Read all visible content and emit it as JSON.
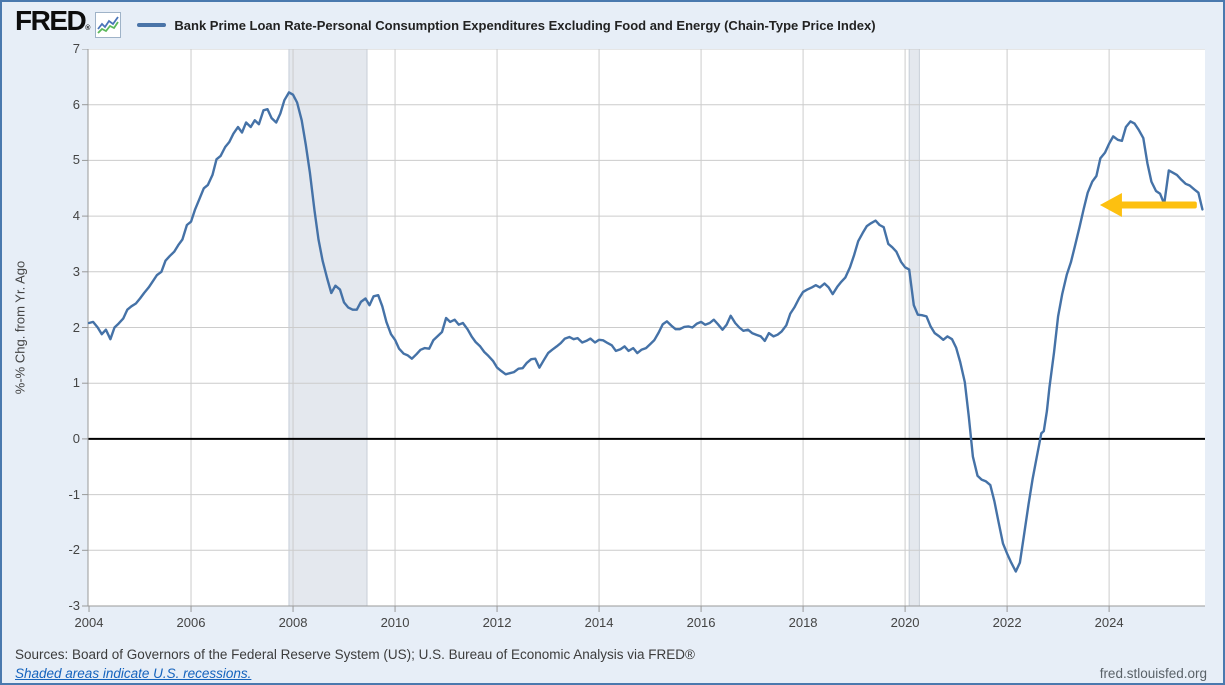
{
  "header": {
    "logo_text": "FRED",
    "logo_mark": "®",
    "legend_label": "Bank Prime Loan Rate-Personal Consumption Expenditures Excluding Food and Energy (Chain-Type Price Index)"
  },
  "footer": {
    "sources": "Sources: Board of Governors of the Federal Reserve System (US); U.S. Bureau of Economic Analysis via FRED®",
    "recession_note": "Shaded areas indicate U.S. recessions.",
    "site": "fred.stlouisfed.org"
  },
  "colors": {
    "line": "#4572a7",
    "arrow": "#fdc010",
    "gridline": "#cccccc",
    "axis": "#999999",
    "zero_line": "#000000",
    "recession_band": "#e4e8ee",
    "recession_band_edge": "#c7ced7",
    "background": "#e7eef7",
    "border": "#4a79ae"
  },
  "chart_data": {
    "type": "line",
    "title": "Bank Prime Loan Rate-Personal Consumption Expenditures Excluding Food and Energy (Chain-Type Price Index)",
    "xlabel": "",
    "ylabel": "%-% Chg. from Yr. Ago",
    "xlim": [
      2003.98,
      2025.88
    ],
    "ylim": [
      -3,
      7
    ],
    "x_ticks": [
      2004,
      2006,
      2008,
      2010,
      2012,
      2014,
      2016,
      2018,
      2020,
      2022,
      2024
    ],
    "y_ticks": [
      7,
      6,
      5,
      4,
      3,
      2,
      1,
      0,
      -1,
      -2,
      -3
    ],
    "grid": true,
    "zero_line": true,
    "legend_position": "top",
    "recession_bands": [
      [
        2007.92,
        2009.45
      ],
      [
        2020.08,
        2020.28
      ]
    ],
    "annotation_arrow": {
      "y_value": 4.2,
      "x_tail": 2025.72,
      "x_tip": 2023.82,
      "direction": "left"
    },
    "series": [
      {
        "name": "Bank Prime Loan Rate-Personal Consumption Expenditures Excluding Food and Energy (Chain-Type Price Index)",
        "points": [
          [
            2004.0,
            2.08
          ],
          [
            2004.08,
            2.1
          ],
          [
            2004.17,
            2.0
          ],
          [
            2004.25,
            1.88
          ],
          [
            2004.33,
            1.96
          ],
          [
            2004.42,
            1.79
          ],
          [
            2004.5,
            2.0
          ],
          [
            2004.58,
            2.07
          ],
          [
            2004.67,
            2.16
          ],
          [
            2004.75,
            2.32
          ],
          [
            2004.83,
            2.38
          ],
          [
            2004.92,
            2.43
          ],
          [
            2005.0,
            2.52
          ],
          [
            2005.08,
            2.62
          ],
          [
            2005.17,
            2.72
          ],
          [
            2005.25,
            2.83
          ],
          [
            2005.33,
            2.94
          ],
          [
            2005.42,
            3.0
          ],
          [
            2005.5,
            3.2
          ],
          [
            2005.58,
            3.28
          ],
          [
            2005.67,
            3.36
          ],
          [
            2005.75,
            3.48
          ],
          [
            2005.83,
            3.58
          ],
          [
            2005.92,
            3.84
          ],
          [
            2006.0,
            3.9
          ],
          [
            2006.08,
            4.12
          ],
          [
            2006.17,
            4.32
          ],
          [
            2006.25,
            4.5
          ],
          [
            2006.33,
            4.56
          ],
          [
            2006.42,
            4.74
          ],
          [
            2006.5,
            5.02
          ],
          [
            2006.58,
            5.08
          ],
          [
            2006.67,
            5.24
          ],
          [
            2006.75,
            5.33
          ],
          [
            2006.83,
            5.48
          ],
          [
            2006.92,
            5.6
          ],
          [
            2007.0,
            5.5
          ],
          [
            2007.08,
            5.68
          ],
          [
            2007.17,
            5.6
          ],
          [
            2007.25,
            5.72
          ],
          [
            2007.33,
            5.65
          ],
          [
            2007.42,
            5.9
          ],
          [
            2007.5,
            5.92
          ],
          [
            2007.58,
            5.76
          ],
          [
            2007.67,
            5.68
          ],
          [
            2007.75,
            5.84
          ],
          [
            2007.83,
            6.08
          ],
          [
            2007.92,
            6.22
          ],
          [
            2008.0,
            6.18
          ],
          [
            2008.08,
            6.04
          ],
          [
            2008.17,
            5.72
          ],
          [
            2008.25,
            5.28
          ],
          [
            2008.33,
            4.78
          ],
          [
            2008.42,
            4.1
          ],
          [
            2008.5,
            3.58
          ],
          [
            2008.58,
            3.2
          ],
          [
            2008.67,
            2.88
          ],
          [
            2008.75,
            2.62
          ],
          [
            2008.83,
            2.75
          ],
          [
            2008.92,
            2.68
          ],
          [
            2009.0,
            2.45
          ],
          [
            2009.08,
            2.36
          ],
          [
            2009.17,
            2.32
          ],
          [
            2009.25,
            2.32
          ],
          [
            2009.33,
            2.46
          ],
          [
            2009.42,
            2.52
          ],
          [
            2009.5,
            2.4
          ],
          [
            2009.58,
            2.56
          ],
          [
            2009.67,
            2.58
          ],
          [
            2009.75,
            2.38
          ],
          [
            2009.83,
            2.1
          ],
          [
            2009.92,
            1.88
          ],
          [
            2010.0,
            1.78
          ],
          [
            2010.08,
            1.62
          ],
          [
            2010.17,
            1.53
          ],
          [
            2010.25,
            1.5
          ],
          [
            2010.33,
            1.44
          ],
          [
            2010.42,
            1.52
          ],
          [
            2010.5,
            1.6
          ],
          [
            2010.58,
            1.63
          ],
          [
            2010.67,
            1.62
          ],
          [
            2010.75,
            1.77
          ],
          [
            2010.83,
            1.84
          ],
          [
            2010.92,
            1.92
          ],
          [
            2011.0,
            2.17
          ],
          [
            2011.08,
            2.1
          ],
          [
            2011.17,
            2.14
          ],
          [
            2011.25,
            2.05
          ],
          [
            2011.33,
            2.08
          ],
          [
            2011.42,
            1.97
          ],
          [
            2011.5,
            1.84
          ],
          [
            2011.58,
            1.74
          ],
          [
            2011.67,
            1.66
          ],
          [
            2011.75,
            1.56
          ],
          [
            2011.83,
            1.49
          ],
          [
            2011.92,
            1.4
          ],
          [
            2012.0,
            1.28
          ],
          [
            2012.08,
            1.22
          ],
          [
            2012.17,
            1.16
          ],
          [
            2012.25,
            1.18
          ],
          [
            2012.33,
            1.2
          ],
          [
            2012.42,
            1.26
          ],
          [
            2012.5,
            1.27
          ],
          [
            2012.58,
            1.36
          ],
          [
            2012.67,
            1.43
          ],
          [
            2012.75,
            1.44
          ],
          [
            2012.83,
            1.28
          ],
          [
            2012.92,
            1.42
          ],
          [
            2013.0,
            1.54
          ],
          [
            2013.08,
            1.6
          ],
          [
            2013.17,
            1.66
          ],
          [
            2013.25,
            1.72
          ],
          [
            2013.33,
            1.8
          ],
          [
            2013.42,
            1.83
          ],
          [
            2013.5,
            1.79
          ],
          [
            2013.58,
            1.81
          ],
          [
            2013.67,
            1.73
          ],
          [
            2013.75,
            1.76
          ],
          [
            2013.83,
            1.8
          ],
          [
            2013.92,
            1.73
          ],
          [
            2014.0,
            1.78
          ],
          [
            2014.08,
            1.77
          ],
          [
            2014.17,
            1.72
          ],
          [
            2014.25,
            1.68
          ],
          [
            2014.33,
            1.58
          ],
          [
            2014.42,
            1.61
          ],
          [
            2014.5,
            1.66
          ],
          [
            2014.58,
            1.58
          ],
          [
            2014.67,
            1.63
          ],
          [
            2014.75,
            1.54
          ],
          [
            2014.83,
            1.6
          ],
          [
            2014.92,
            1.63
          ],
          [
            2015.0,
            1.7
          ],
          [
            2015.08,
            1.77
          ],
          [
            2015.17,
            1.91
          ],
          [
            2015.25,
            2.06
          ],
          [
            2015.33,
            2.11
          ],
          [
            2015.42,
            2.03
          ],
          [
            2015.5,
            1.97
          ],
          [
            2015.58,
            1.97
          ],
          [
            2015.67,
            2.01
          ],
          [
            2015.75,
            2.02
          ],
          [
            2015.83,
            2.0
          ],
          [
            2015.92,
            2.07
          ],
          [
            2016.0,
            2.1
          ],
          [
            2016.08,
            2.05
          ],
          [
            2016.17,
            2.08
          ],
          [
            2016.25,
            2.14
          ],
          [
            2016.33,
            2.06
          ],
          [
            2016.42,
            1.96
          ],
          [
            2016.5,
            2.05
          ],
          [
            2016.58,
            2.21
          ],
          [
            2016.67,
            2.08
          ],
          [
            2016.75,
            2.0
          ],
          [
            2016.83,
            1.94
          ],
          [
            2016.92,
            1.96
          ],
          [
            2017.0,
            1.9
          ],
          [
            2017.08,
            1.87
          ],
          [
            2017.17,
            1.84
          ],
          [
            2017.25,
            1.76
          ],
          [
            2017.33,
            1.9
          ],
          [
            2017.42,
            1.84
          ],
          [
            2017.5,
            1.87
          ],
          [
            2017.58,
            1.93
          ],
          [
            2017.67,
            2.04
          ],
          [
            2017.75,
            2.25
          ],
          [
            2017.83,
            2.36
          ],
          [
            2017.92,
            2.52
          ],
          [
            2018.0,
            2.64
          ],
          [
            2018.08,
            2.68
          ],
          [
            2018.17,
            2.72
          ],
          [
            2018.25,
            2.76
          ],
          [
            2018.33,
            2.72
          ],
          [
            2018.42,
            2.79
          ],
          [
            2018.5,
            2.72
          ],
          [
            2018.58,
            2.6
          ],
          [
            2018.67,
            2.73
          ],
          [
            2018.75,
            2.82
          ],
          [
            2018.83,
            2.9
          ],
          [
            2018.92,
            3.08
          ],
          [
            2019.0,
            3.3
          ],
          [
            2019.08,
            3.55
          ],
          [
            2019.17,
            3.7
          ],
          [
            2019.25,
            3.82
          ],
          [
            2019.33,
            3.87
          ],
          [
            2019.42,
            3.92
          ],
          [
            2019.5,
            3.84
          ],
          [
            2019.58,
            3.8
          ],
          [
            2019.67,
            3.5
          ],
          [
            2019.75,
            3.44
          ],
          [
            2019.83,
            3.36
          ],
          [
            2019.92,
            3.18
          ],
          [
            2020.0,
            3.08
          ],
          [
            2020.08,
            3.04
          ],
          [
            2020.17,
            2.4
          ],
          [
            2020.25,
            2.23
          ],
          [
            2020.33,
            2.22
          ],
          [
            2020.42,
            2.2
          ],
          [
            2020.5,
            2.02
          ],
          [
            2020.58,
            1.9
          ],
          [
            2020.67,
            1.84
          ],
          [
            2020.75,
            1.78
          ],
          [
            2020.83,
            1.84
          ],
          [
            2020.92,
            1.79
          ],
          [
            2021.0,
            1.64
          ],
          [
            2021.08,
            1.38
          ],
          [
            2021.17,
            1.02
          ],
          [
            2021.25,
            0.4
          ],
          [
            2021.33,
            -0.32
          ],
          [
            2021.42,
            -0.66
          ],
          [
            2021.5,
            -0.73
          ],
          [
            2021.58,
            -0.76
          ],
          [
            2021.67,
            -0.83
          ],
          [
            2021.75,
            -1.12
          ],
          [
            2021.83,
            -1.48
          ],
          [
            2021.92,
            -1.88
          ],
          [
            2022.0,
            -2.06
          ],
          [
            2022.08,
            -2.22
          ],
          [
            2022.17,
            -2.38
          ],
          [
            2022.25,
            -2.22
          ],
          [
            2022.33,
            -1.74
          ],
          [
            2022.42,
            -1.18
          ],
          [
            2022.5,
            -0.72
          ],
          [
            2022.58,
            -0.33
          ],
          [
            2022.67,
            0.1
          ],
          [
            2022.72,
            0.14
          ],
          [
            2022.78,
            0.5
          ],
          [
            2022.83,
            0.92
          ],
          [
            2022.92,
            1.55
          ],
          [
            2023.0,
            2.2
          ],
          [
            2023.08,
            2.6
          ],
          [
            2023.17,
            2.95
          ],
          [
            2023.25,
            3.17
          ],
          [
            2023.33,
            3.46
          ],
          [
            2023.42,
            3.8
          ],
          [
            2023.5,
            4.12
          ],
          [
            2023.58,
            4.42
          ],
          [
            2023.67,
            4.62
          ],
          [
            2023.75,
            4.72
          ],
          [
            2023.83,
            5.04
          ],
          [
            2023.92,
            5.14
          ],
          [
            2024.0,
            5.3
          ],
          [
            2024.08,
            5.43
          ],
          [
            2024.17,
            5.37
          ],
          [
            2024.25,
            5.35
          ],
          [
            2024.33,
            5.6
          ],
          [
            2024.42,
            5.7
          ],
          [
            2024.5,
            5.66
          ],
          [
            2024.58,
            5.55
          ],
          [
            2024.67,
            5.4
          ],
          [
            2024.75,
            4.95
          ],
          [
            2024.83,
            4.62
          ],
          [
            2024.92,
            4.45
          ],
          [
            2025.0,
            4.4
          ],
          [
            2025.08,
            4.22
          ],
          [
            2025.17,
            4.82
          ],
          [
            2025.25,
            4.78
          ],
          [
            2025.33,
            4.74
          ],
          [
            2025.42,
            4.65
          ],
          [
            2025.5,
            4.58
          ],
          [
            2025.58,
            4.55
          ],
          [
            2025.67,
            4.48
          ],
          [
            2025.75,
            4.42
          ],
          [
            2025.83,
            4.12
          ]
        ]
      }
    ]
  }
}
